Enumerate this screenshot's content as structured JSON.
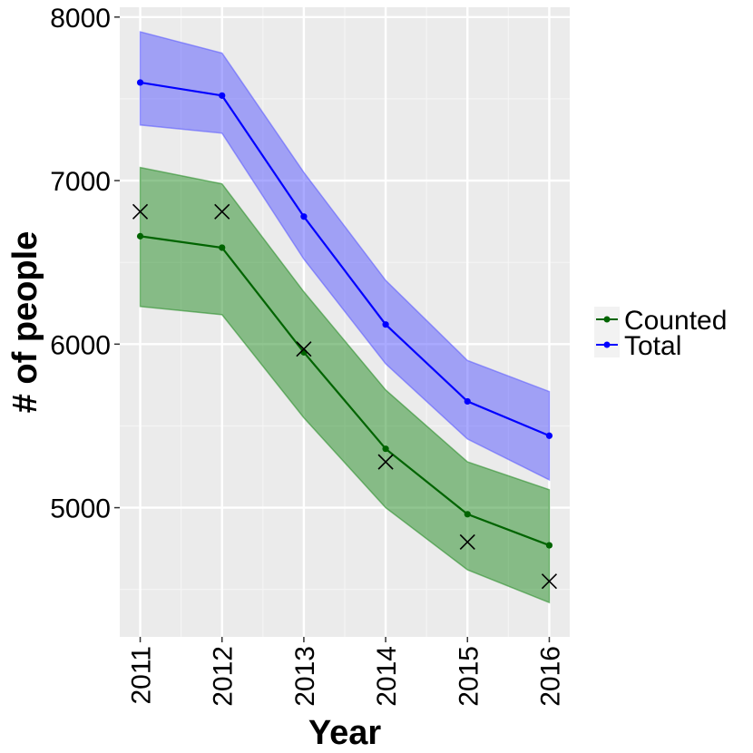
{
  "chart_data": {
    "type": "line",
    "xlabel": "Year",
    "ylabel": "# of people",
    "x": [
      2011,
      2012,
      2013,
      2014,
      2015,
      2016
    ],
    "x_tick_labels": [
      "2011",
      "2012",
      "2013",
      "2014",
      "2015",
      "2016"
    ],
    "y_ticks": [
      5000,
      6000,
      7000,
      8000
    ],
    "y_tick_labels": [
      "5000",
      "6000",
      "7000",
      "8000"
    ],
    "xlim": [
      2010.75,
      2016.25
    ],
    "ylim": [
      4210,
      8060
    ],
    "grid": true,
    "legend_position": "right",
    "series": [
      {
        "name": "Counted",
        "color": "#006400",
        "band_color": "#228B22",
        "values": [
          6660,
          6590,
          5950,
          5360,
          4960,
          4770
        ],
        "lower": [
          6230,
          6180,
          5550,
          5000,
          4620,
          4420
        ],
        "upper": [
          7080,
          6980,
          6320,
          5720,
          5280,
          5110
        ]
      },
      {
        "name": "Total",
        "color": "#0000ff",
        "band_color": "#5555ff",
        "values": [
          7600,
          7520,
          6780,
          6120,
          5650,
          5440
        ],
        "lower": [
          7340,
          7290,
          6520,
          5880,
          5420,
          5170
        ],
        "upper": [
          7910,
          7780,
          7050,
          6390,
          5900,
          5710
        ]
      }
    ],
    "observed": {
      "marker": "x",
      "color": "#000000",
      "values": [
        6810,
        6810,
        5970,
        5280,
        4790,
        4550
      ]
    }
  }
}
